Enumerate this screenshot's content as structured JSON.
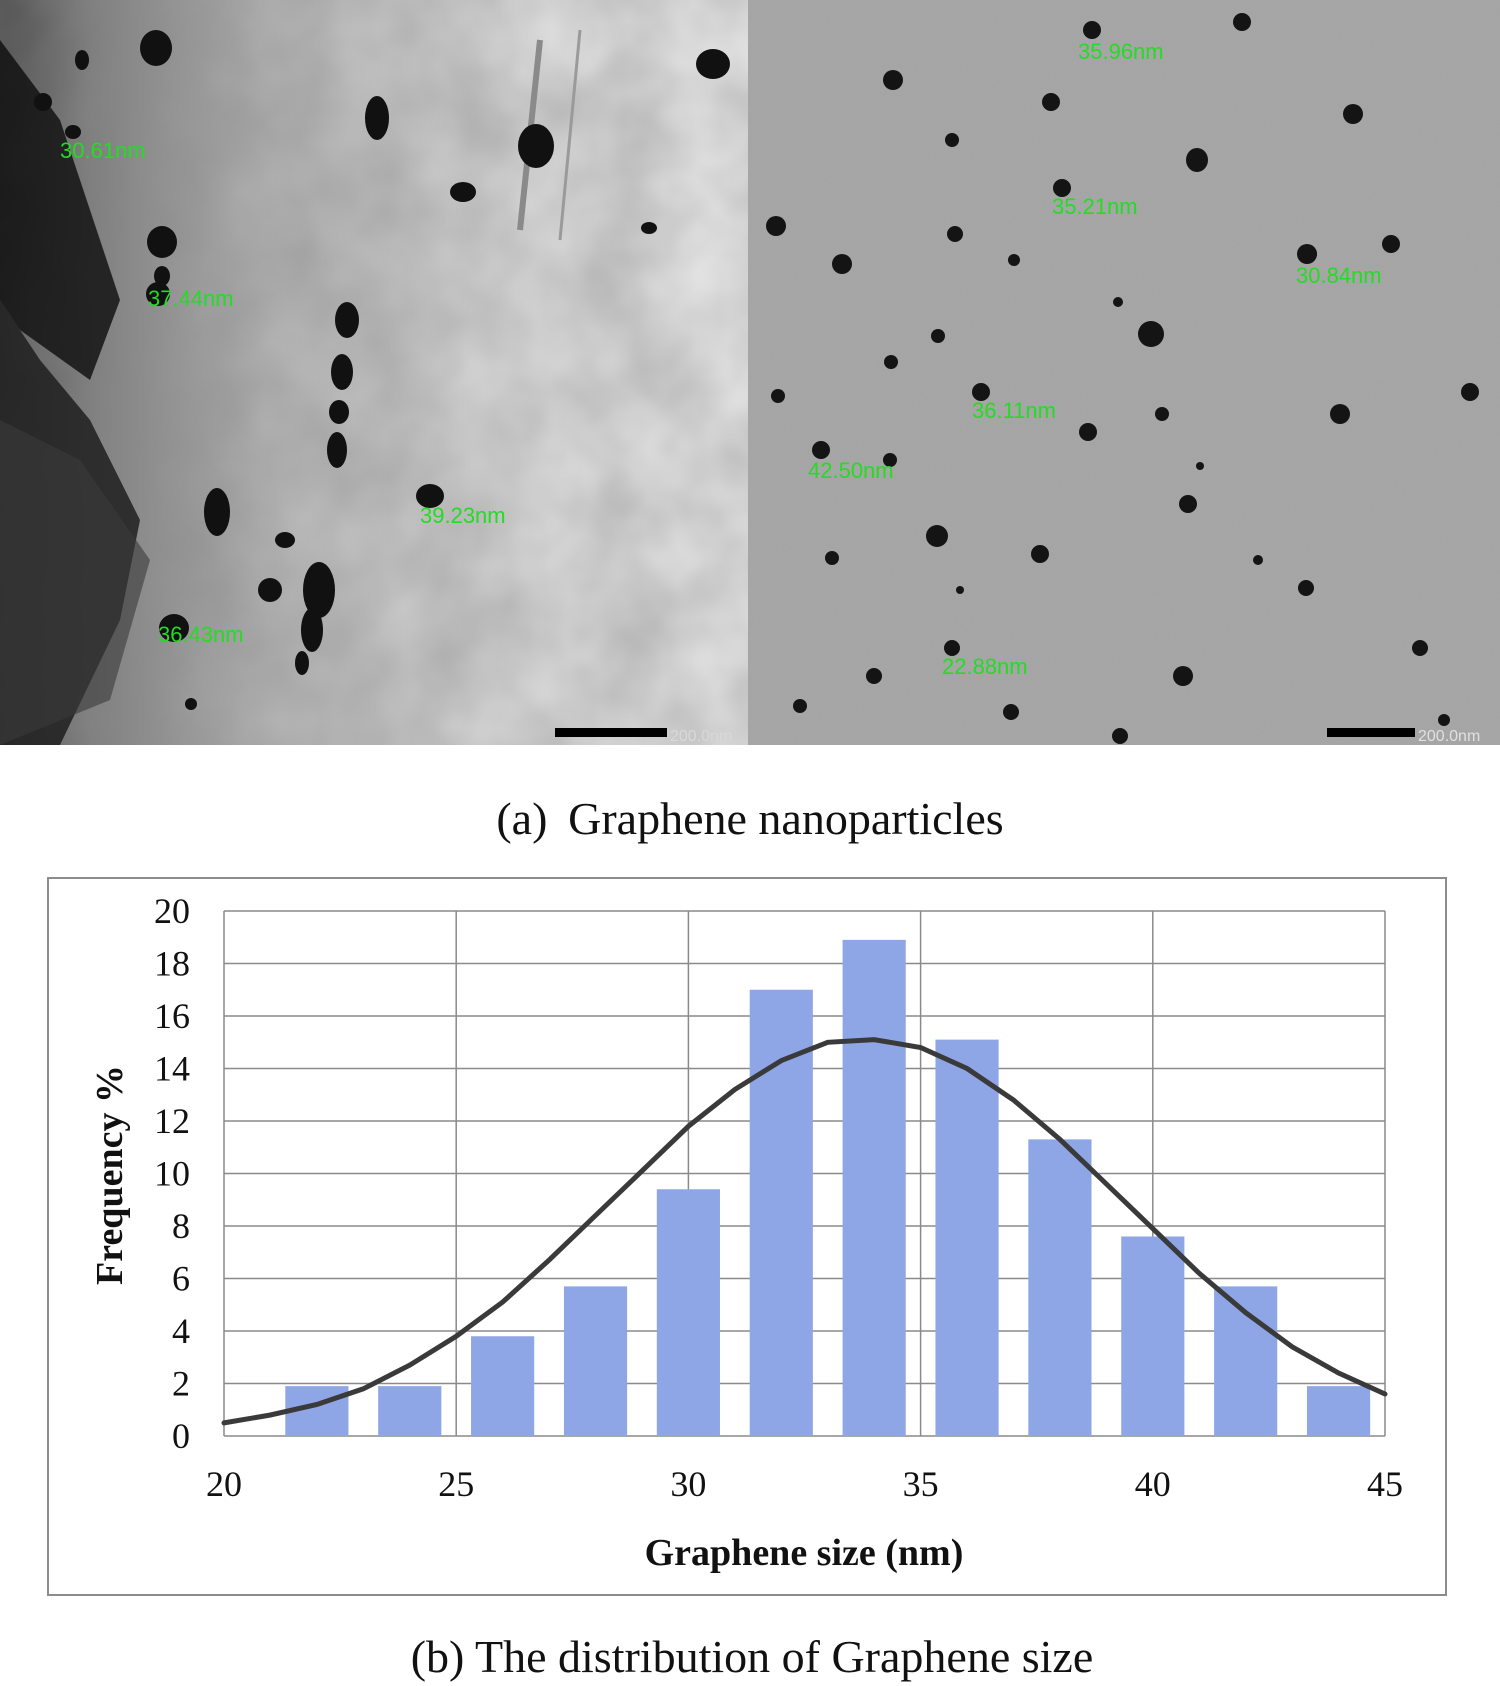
{
  "panel_a": {
    "caption": "(a)  Graphene nanoparticles",
    "left_image": {
      "measurements": [
        "30.61nm",
        "37.44nm",
        "39.23nm",
        "36.43nm"
      ],
      "scale_bar_label": "200.0nm"
    },
    "right_image": {
      "measurements": [
        "35.96nm",
        "35.21nm",
        "30.84nm",
        "36.11nm",
        "42.50nm",
        "22.88nm"
      ],
      "scale_bar_label": "200.0nm"
    },
    "label_color": "#22dd22"
  },
  "panel_b": {
    "caption": "(b) The distribution of Graphene size"
  },
  "chart_data": {
    "type": "bar",
    "xlabel": "Graphene size (nm)",
    "ylabel": "Frequency %",
    "xlim": [
      20,
      45
    ],
    "ylim": [
      0,
      20
    ],
    "xticks": [
      20,
      25,
      30,
      35,
      40,
      45
    ],
    "yticks": [
      0,
      2,
      4,
      6,
      8,
      10,
      12,
      14,
      16,
      18,
      20
    ],
    "grid": true,
    "bar_color": "#8ea6e6",
    "curve_color": "#3a3a3a",
    "bin_width": 2,
    "bin_centers": [
      22,
      24,
      26,
      28,
      30,
      32,
      34,
      36,
      38,
      40,
      42,
      44
    ],
    "values": [
      1.9,
      1.9,
      3.8,
      5.7,
      9.4,
      17.0,
      18.9,
      15.1,
      11.3,
      7.6,
      5.7,
      1.9
    ],
    "fit_curve": {
      "type": "normal",
      "x": [
        20,
        21,
        22,
        23,
        24,
        25,
        26,
        27,
        28,
        29,
        30,
        31,
        32,
        33,
        34,
        35,
        36,
        37,
        38,
        39,
        40,
        41,
        42,
        43,
        44,
        45
      ],
      "y": [
        0.5,
        0.8,
        1.2,
        1.8,
        2.7,
        3.8,
        5.1,
        6.7,
        8.4,
        10.1,
        11.8,
        13.2,
        14.3,
        15.0,
        15.1,
        14.8,
        14.0,
        12.8,
        11.3,
        9.6,
        7.9,
        6.2,
        4.7,
        3.4,
        2.4,
        1.6
      ]
    }
  }
}
